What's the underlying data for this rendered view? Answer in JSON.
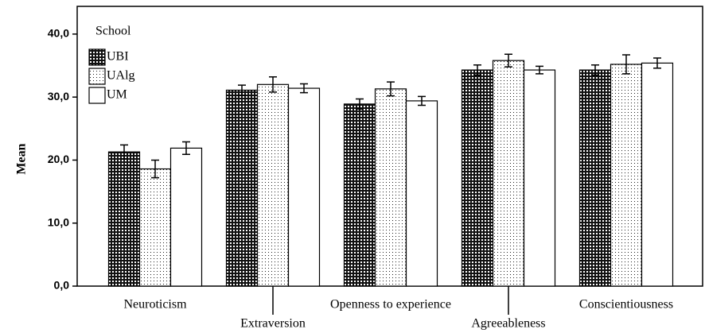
{
  "chart_data": {
    "type": "bar",
    "ylabel": "Mean",
    "legend_title": "School",
    "legend": "upper left",
    "categories": [
      "Neuroticism",
      "Extraversion",
      "Openness to experience",
      "Agreeableness",
      "Conscientiousness"
    ],
    "series": [
      {
        "name": "UBI",
        "pattern": "checker",
        "values": [
          21.3,
          31.1,
          28.9,
          34.3,
          34.3
        ],
        "errors": [
          1.1,
          0.8,
          0.8,
          0.8,
          0.8
        ]
      },
      {
        "name": "UAlg",
        "pattern": "dots",
        "values": [
          18.6,
          32.0,
          31.3,
          35.8,
          35.2
        ],
        "errors": [
          1.4,
          1.2,
          1.1,
          1.0,
          1.5
        ]
      },
      {
        "name": "UM",
        "pattern": "none",
        "values": [
          21.9,
          31.4,
          29.4,
          34.3,
          35.4
        ],
        "errors": [
          1.0,
          0.7,
          0.7,
          0.6,
          0.8
        ]
      }
    ],
    "ylim": [
      0,
      44.4
    ],
    "yticks": [
      {
        "value": 0,
        "label": "0,0"
      },
      {
        "value": 10,
        "label": "10,0"
      },
      {
        "value": 20,
        "label": "20,0"
      },
      {
        "value": 30,
        "label": "30,0"
      },
      {
        "value": 40,
        "label": "40,0"
      }
    ]
  }
}
